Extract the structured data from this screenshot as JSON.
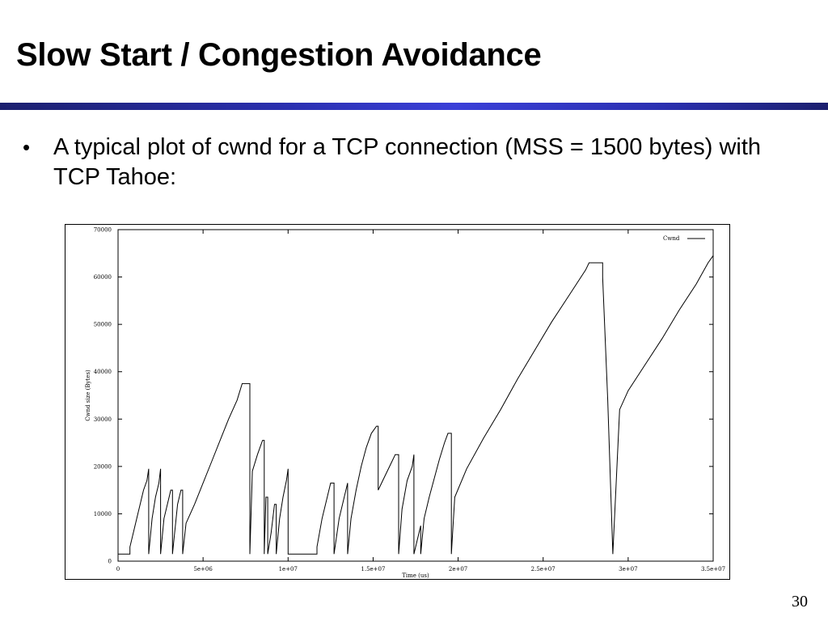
{
  "slide": {
    "title": "Slow Start / Congestion Avoidance",
    "bullet_marker": "•",
    "bullet_text": "A typical plot of cwnd for a TCP connection (MSS = 1500 bytes) with TCP Tahoe:",
    "page_number": "30",
    "accent_color": "#2a2fb0"
  },
  "chart_data": {
    "type": "line",
    "title": "",
    "xlabel": "Time (us)",
    "ylabel": "Cwnd size (Bytes)",
    "xlim": [
      0,
      35000000
    ],
    "ylim": [
      0,
      70000
    ],
    "x_ticks": [
      0,
      5000000,
      10000000,
      15000000,
      20000000,
      25000000,
      30000000,
      35000000
    ],
    "x_tick_labels": [
      "0",
      "5e+06",
      "1e+07",
      "1.5e+07",
      "2e+07",
      "2.5e+07",
      "3e+07",
      "3.5e+07"
    ],
    "y_ticks": [
      0,
      10000,
      20000,
      30000,
      40000,
      50000,
      60000,
      70000
    ],
    "y_tick_labels": [
      "0",
      "10000",
      "20000",
      "30000",
      "40000",
      "50000",
      "60000",
      "70000"
    ],
    "legend": "top-right",
    "grid": false,
    "series": [
      {
        "name": "Cwnd",
        "color": "#000000",
        "points": [
          [
            0,
            1500
          ],
          [
            700000,
            1500
          ],
          [
            700000,
            3000
          ],
          [
            900000,
            6000
          ],
          [
            1100000,
            9000
          ],
          [
            1300000,
            12000
          ],
          [
            1500000,
            15000
          ],
          [
            1700000,
            17000
          ],
          [
            1800000,
            19500
          ],
          [
            1800000,
            1500
          ],
          [
            2000000,
            9000
          ],
          [
            2200000,
            13500
          ],
          [
            2400000,
            16500
          ],
          [
            2500000,
            19500
          ],
          [
            2500000,
            1500
          ],
          [
            2700000,
            9000
          ],
          [
            2900000,
            12000
          ],
          [
            3100000,
            15000
          ],
          [
            3200000,
            15000
          ],
          [
            3200000,
            1500
          ],
          [
            3500000,
            12000
          ],
          [
            3700000,
            15000
          ],
          [
            3800000,
            15000
          ],
          [
            3800000,
            1500
          ],
          [
            4000000,
            8000
          ],
          [
            4500000,
            12000
          ],
          [
            5000000,
            16500
          ],
          [
            5500000,
            21000
          ],
          [
            6000000,
            25500
          ],
          [
            6500000,
            30000
          ],
          [
            7000000,
            34000
          ],
          [
            7300000,
            37500
          ],
          [
            7750000,
            37500
          ],
          [
            7750000,
            1500
          ],
          [
            7900000,
            19000
          ],
          [
            8200000,
            22500
          ],
          [
            8500000,
            25500
          ],
          [
            8600000,
            25500
          ],
          [
            8600000,
            1500
          ],
          [
            8700000,
            13500
          ],
          [
            8800000,
            13500
          ],
          [
            8800000,
            1500
          ],
          [
            9000000,
            6000
          ],
          [
            9200000,
            12000
          ],
          [
            9300000,
            12000
          ],
          [
            9300000,
            1500
          ],
          [
            9500000,
            9000
          ],
          [
            9700000,
            13500
          ],
          [
            9900000,
            17000
          ],
          [
            10000000,
            19500
          ],
          [
            10000000,
            1500
          ],
          [
            11700000,
            1500
          ],
          [
            11700000,
            3000
          ],
          [
            12000000,
            9000
          ],
          [
            12300000,
            13500
          ],
          [
            12500000,
            16500
          ],
          [
            12700000,
            16500
          ],
          [
            12700000,
            1500
          ],
          [
            13000000,
            9000
          ],
          [
            13300000,
            13500
          ],
          [
            13500000,
            16500
          ],
          [
            13500000,
            1500
          ],
          [
            13700000,
            9000
          ],
          [
            14000000,
            15000
          ],
          [
            14300000,
            20000
          ],
          [
            14600000,
            24000
          ],
          [
            14900000,
            27000
          ],
          [
            15200000,
            28500
          ],
          [
            15300000,
            28500
          ],
          [
            15300000,
            15000
          ],
          [
            15700000,
            18000
          ],
          [
            16100000,
            21000
          ],
          [
            16300000,
            22500
          ],
          [
            16500000,
            22500
          ],
          [
            16500000,
            1500
          ],
          [
            16700000,
            11000
          ],
          [
            17000000,
            17000
          ],
          [
            17300000,
            20000
          ],
          [
            17400000,
            22500
          ],
          [
            17400000,
            1500
          ],
          [
            17600000,
            4500
          ],
          [
            17800000,
            7500
          ],
          [
            17800000,
            1500
          ],
          [
            18000000,
            9000
          ],
          [
            18300000,
            13500
          ],
          [
            18600000,
            17500
          ],
          [
            18900000,
            21500
          ],
          [
            19200000,
            25000
          ],
          [
            19400000,
            27000
          ],
          [
            19600000,
            27000
          ],
          [
            19600000,
            1500
          ],
          [
            19800000,
            13500
          ],
          [
            20500000,
            19500
          ],
          [
            21500000,
            26000
          ],
          [
            22500000,
            32000
          ],
          [
            23500000,
            38500
          ],
          [
            24500000,
            44500
          ],
          [
            25500000,
            50500
          ],
          [
            26500000,
            56000
          ],
          [
            27500000,
            61500
          ],
          [
            27700000,
            63000
          ],
          [
            28500000,
            63000
          ],
          [
            28500000,
            60000
          ],
          [
            28800000,
            34000
          ],
          [
            29100000,
            1500
          ],
          [
            29500000,
            32000
          ],
          [
            30000000,
            36000
          ],
          [
            31000000,
            41500
          ],
          [
            32000000,
            47000
          ],
          [
            33000000,
            53000
          ],
          [
            34000000,
            58500
          ],
          [
            34700000,
            63000
          ],
          [
            35000000,
            64500
          ]
        ]
      }
    ]
  }
}
